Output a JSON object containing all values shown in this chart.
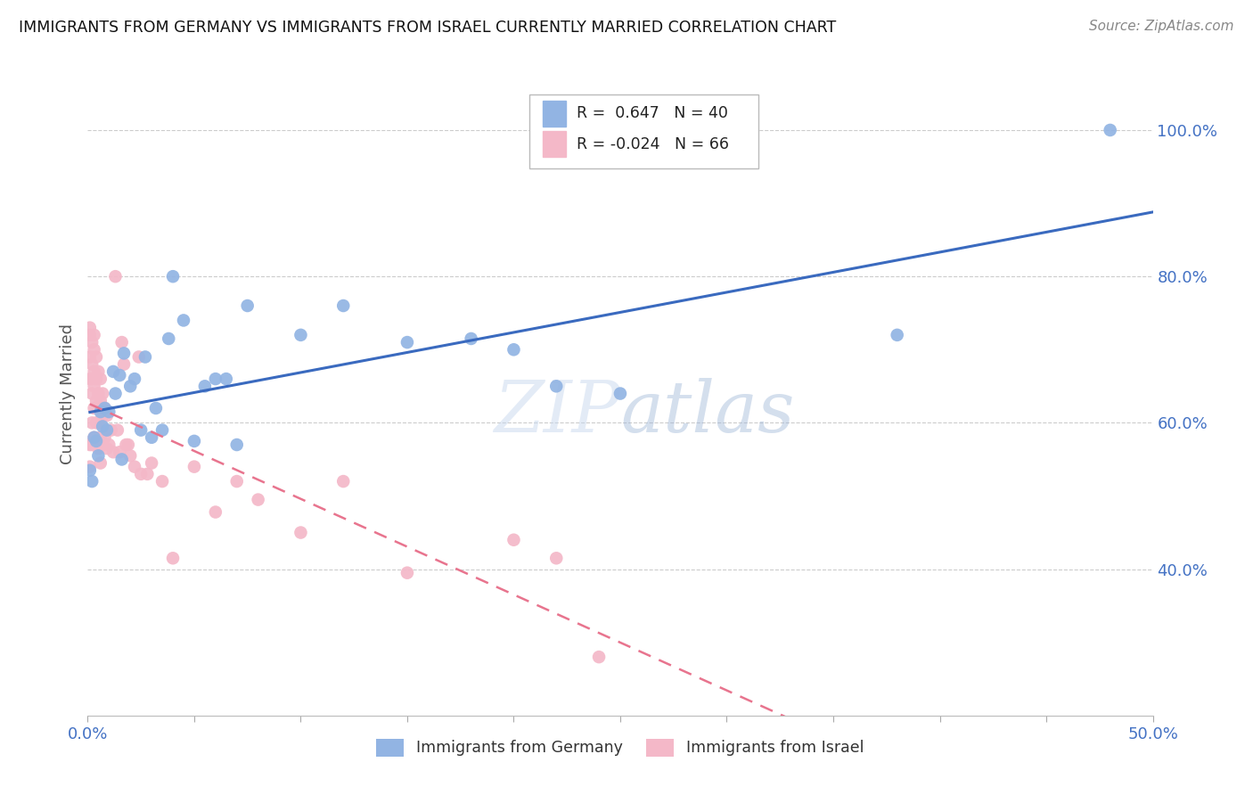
{
  "title": "IMMIGRANTS FROM GERMANY VS IMMIGRANTS FROM ISRAEL CURRENTLY MARRIED CORRELATION CHART",
  "source": "Source: ZipAtlas.com",
  "ylabel": "Currently Married",
  "xlim": [
    0.0,
    0.5
  ],
  "ylim": [
    0.2,
    1.08
  ],
  "yticks": [
    0.4,
    0.6,
    0.8,
    1.0
  ],
  "ytick_labels": [
    "40.0%",
    "60.0%",
    "80.0%",
    "100.0%"
  ],
  "xticks": [
    0.0,
    0.05,
    0.1,
    0.15,
    0.2,
    0.25,
    0.3,
    0.35,
    0.4,
    0.45,
    0.5
  ],
  "xtick_labels": [
    "0.0%",
    "",
    "",
    "",
    "",
    "",
    "",
    "",
    "",
    "",
    "50.0%"
  ],
  "germany_R": 0.647,
  "germany_N": 40,
  "israel_R": -0.024,
  "israel_N": 66,
  "germany_color": "#92b4e3",
  "israel_color": "#f4b8c8",
  "germany_line_color": "#3a6abf",
  "israel_line_color": "#e8748e",
  "germany_scatter_x": [
    0.001,
    0.002,
    0.003,
    0.004,
    0.005,
    0.006,
    0.007,
    0.008,
    0.009,
    0.01,
    0.012,
    0.013,
    0.015,
    0.016,
    0.017,
    0.02,
    0.022,
    0.025,
    0.027,
    0.03,
    0.032,
    0.035,
    0.038,
    0.04,
    0.045,
    0.05,
    0.055,
    0.06,
    0.065,
    0.07,
    0.075,
    0.1,
    0.12,
    0.15,
    0.18,
    0.2,
    0.22,
    0.25,
    0.38,
    0.48
  ],
  "germany_scatter_y": [
    0.535,
    0.52,
    0.58,
    0.575,
    0.555,
    0.615,
    0.595,
    0.62,
    0.59,
    0.615,
    0.67,
    0.64,
    0.665,
    0.55,
    0.695,
    0.65,
    0.66,
    0.59,
    0.69,
    0.58,
    0.62,
    0.59,
    0.715,
    0.8,
    0.74,
    0.575,
    0.65,
    0.66,
    0.66,
    0.57,
    0.76,
    0.72,
    0.76,
    0.71,
    0.715,
    0.7,
    0.65,
    0.64,
    0.72,
    1.0
  ],
  "israel_scatter_x": [
    0.001,
    0.001,
    0.001,
    0.001,
    0.001,
    0.001,
    0.002,
    0.002,
    0.002,
    0.002,
    0.002,
    0.002,
    0.003,
    0.003,
    0.003,
    0.003,
    0.003,
    0.003,
    0.004,
    0.004,
    0.004,
    0.004,
    0.004,
    0.005,
    0.005,
    0.005,
    0.005,
    0.006,
    0.006,
    0.006,
    0.006,
    0.007,
    0.007,
    0.007,
    0.008,
    0.008,
    0.009,
    0.009,
    0.01,
    0.011,
    0.012,
    0.013,
    0.014,
    0.015,
    0.016,
    0.017,
    0.018,
    0.019,
    0.02,
    0.022,
    0.024,
    0.025,
    0.028,
    0.03,
    0.035,
    0.04,
    0.05,
    0.06,
    0.07,
    0.08,
    0.1,
    0.12,
    0.15,
    0.2,
    0.22,
    0.24
  ],
  "israel_scatter_y": [
    0.73,
    0.72,
    0.69,
    0.66,
    0.57,
    0.54,
    0.71,
    0.68,
    0.66,
    0.64,
    0.6,
    0.57,
    0.72,
    0.7,
    0.67,
    0.65,
    0.62,
    0.58,
    0.69,
    0.66,
    0.63,
    0.6,
    0.57,
    0.67,
    0.64,
    0.6,
    0.565,
    0.66,
    0.63,
    0.58,
    0.545,
    0.64,
    0.61,
    0.57,
    0.62,
    0.58,
    0.61,
    0.565,
    0.57,
    0.59,
    0.56,
    0.8,
    0.59,
    0.56,
    0.71,
    0.68,
    0.57,
    0.57,
    0.555,
    0.54,
    0.69,
    0.53,
    0.53,
    0.545,
    0.52,
    0.415,
    0.54,
    0.478,
    0.52,
    0.495,
    0.45,
    0.52,
    0.395,
    0.44,
    0.415,
    0.28
  ]
}
